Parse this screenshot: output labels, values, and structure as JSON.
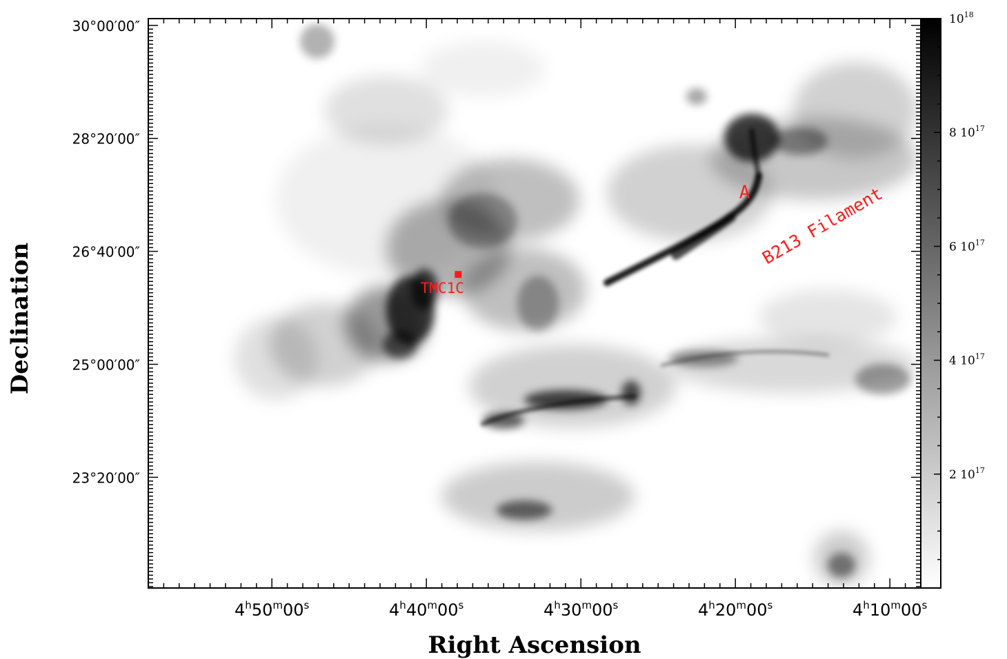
{
  "chart_data": {
    "type": "heatmap",
    "title": "",
    "xlabel": "Right Ascension",
    "ylabel": "Declination",
    "x_ticks": [
      {
        "h": "4",
        "m": "50",
        "s": "00"
      },
      {
        "h": "4",
        "m": "40",
        "s": "00"
      },
      {
        "h": "4",
        "m": "30",
        "s": "00"
      },
      {
        "h": "4",
        "m": "20",
        "s": "00"
      },
      {
        "h": "4",
        "m": "10",
        "s": "00"
      }
    ],
    "x_tick_values_deg": [
      72.5,
      70.0,
      67.5,
      65.0,
      62.5
    ],
    "xlim_deg": [
      74.5,
      62.0
    ],
    "y_ticks": [
      "30°00′00″",
      "28°20′00″",
      "26°40′00″",
      "25°00′00″",
      "23°20′00″"
    ],
    "y_tick_values_deg": [
      30.0,
      28.3333,
      26.6667,
      25.0,
      23.3333
    ],
    "ylim_deg": [
      21.7,
      30.1
    ],
    "colorbar": {
      "colormap": "grayscale (white = low, black = high)",
      "range": [
        0,
        1e+18
      ],
      "ticks": [
        {
          "value": 1e+18,
          "mantissa": "",
          "exponent": "18"
        },
        {
          "value": 8e+17,
          "mantissa": "8",
          "exponent": "17"
        },
        {
          "value": 6e+17,
          "mantissa": "6",
          "exponent": "17"
        },
        {
          "value": 4e+17,
          "mantissa": "4",
          "exponent": "17"
        },
        {
          "value": 2e+17,
          "mantissa": "2",
          "exponent": "17"
        }
      ]
    },
    "annotations": [
      {
        "text": "TMC1C",
        "ra_deg": 70.3,
        "dec_deg": 26.0,
        "marker": "square"
      },
      {
        "text": "A",
        "ra_deg": 64.85,
        "dec_deg": 27.45
      },
      {
        "text": "B213 Filament",
        "ra_deg": 64.55,
        "dec_deg": 27.0,
        "rotation_deg": -30
      }
    ],
    "annotation_color": "#ff1a1a",
    "grid": false
  }
}
